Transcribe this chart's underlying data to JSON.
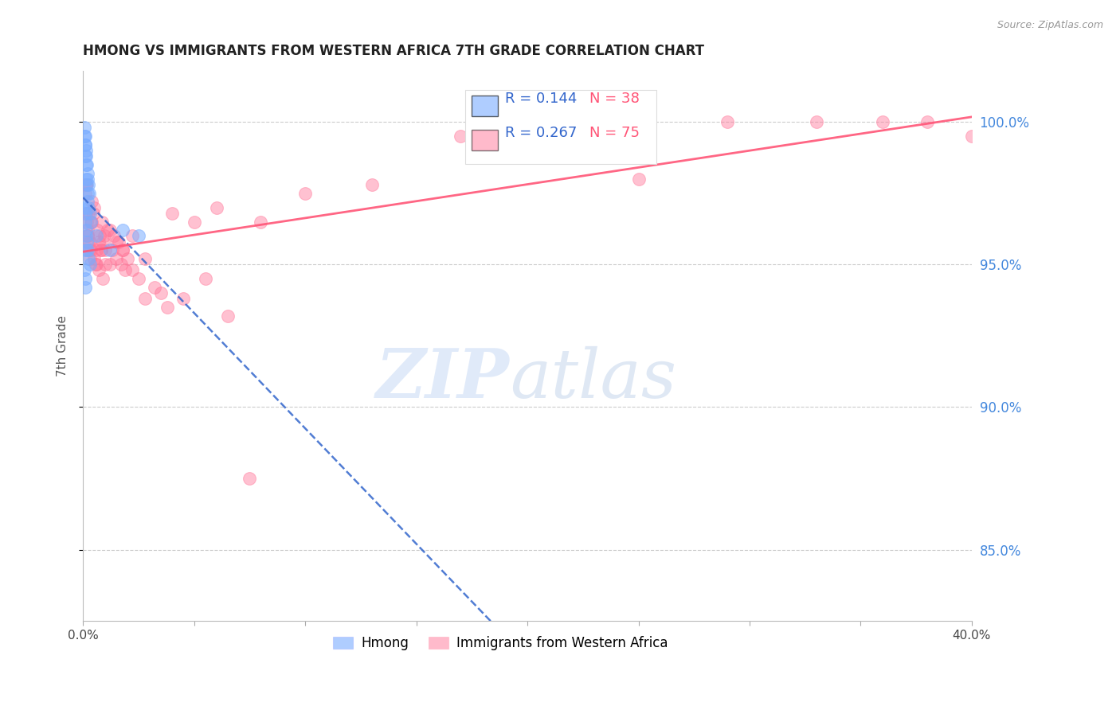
{
  "title": "HMONG VS IMMIGRANTS FROM WESTERN AFRICA 7TH GRADE CORRELATION CHART",
  "source": "Source: ZipAtlas.com",
  "ylabel": "7th Grade",
  "xlim": [
    0.0,
    40.0
  ],
  "ylim": [
    82.5,
    101.8
  ],
  "xtick_values": [
    0.0,
    5.0,
    10.0,
    15.0,
    20.0,
    25.0,
    30.0,
    35.0,
    40.0
  ],
  "xtick_labels": [
    "0.0%",
    "",
    "",
    "",
    "",
    "",
    "",
    "",
    "40.0%"
  ],
  "ytick_values": [
    85.0,
    90.0,
    95.0,
    100.0
  ],
  "ytick_labels": [
    "85.0%",
    "90.0%",
    "95.0%",
    "100.0%"
  ],
  "hmong_R": 0.144,
  "hmong_N": 38,
  "waf_R": 0.267,
  "waf_N": 75,
  "hmong_color": "#7aadff",
  "waf_color": "#ff7799",
  "hmong_line_color": "#3366cc",
  "waf_line_color": "#ff5577",
  "hmong_x": [
    0.05,
    0.08,
    0.1,
    0.12,
    0.15,
    0.18,
    0.2,
    0.22,
    0.25,
    0.28,
    0.05,
    0.08,
    0.1,
    0.12,
    0.15,
    0.18,
    0.2,
    0.22,
    0.25,
    0.3,
    0.05,
    0.08,
    0.1,
    0.12,
    0.15,
    0.18,
    0.2,
    0.25,
    0.3,
    0.35,
    0.05,
    0.08,
    0.1,
    0.15,
    0.6,
    1.2,
    1.8,
    2.5
  ],
  "hmong_y": [
    99.8,
    99.5,
    99.2,
    99.0,
    98.8,
    98.5,
    98.2,
    98.0,
    97.8,
    97.5,
    99.5,
    99.2,
    98.8,
    98.5,
    98.0,
    97.8,
    97.5,
    97.2,
    97.0,
    96.8,
    97.0,
    96.8,
    96.5,
    96.2,
    96.0,
    95.8,
    95.5,
    95.2,
    95.0,
    96.5,
    94.8,
    94.5,
    94.2,
    95.5,
    96.0,
    95.5,
    96.2,
    96.0
  ],
  "waf_x": [
    0.08,
    0.12,
    0.15,
    0.18,
    0.2,
    0.22,
    0.25,
    0.28,
    0.3,
    0.35,
    0.4,
    0.45,
    0.5,
    0.55,
    0.6,
    0.65,
    0.7,
    0.75,
    0.8,
    0.85,
    0.9,
    0.95,
    1.0,
    1.1,
    1.2,
    1.3,
    1.4,
    1.5,
    1.6,
    1.7,
    1.8,
    1.9,
    2.0,
    2.2,
    2.5,
    2.8,
    3.2,
    3.8,
    4.5,
    5.5,
    6.5,
    7.5,
    0.1,
    0.2,
    0.3,
    0.4,
    0.5,
    0.6,
    0.7,
    0.8,
    0.9,
    1.0,
    1.2,
    1.5,
    1.8,
    2.2,
    2.8,
    3.5,
    0.15,
    0.25,
    0.35,
    4.0,
    5.0,
    6.0,
    8.0,
    10.0,
    13.0,
    17.0,
    20.0,
    25.0,
    29.0,
    33.0,
    36.0,
    38.0,
    40.0
  ],
  "waf_y": [
    97.5,
    96.8,
    97.8,
    96.5,
    96.2,
    96.0,
    95.8,
    95.5,
    95.2,
    96.5,
    97.2,
    96.8,
    97.0,
    95.0,
    95.5,
    96.2,
    95.8,
    96.0,
    95.5,
    96.5,
    95.8,
    96.0,
    95.5,
    96.2,
    95.0,
    95.5,
    96.0,
    95.2,
    95.8,
    95.0,
    95.5,
    94.8,
    95.2,
    96.0,
    94.5,
    93.8,
    94.2,
    93.5,
    93.8,
    94.5,
    93.2,
    87.5,
    95.5,
    96.0,
    95.8,
    96.5,
    95.2,
    95.0,
    94.8,
    95.5,
    94.5,
    95.0,
    96.2,
    95.8,
    95.5,
    94.8,
    95.2,
    94.0,
    97.8,
    96.8,
    95.5,
    96.8,
    96.5,
    97.0,
    96.5,
    97.5,
    97.8,
    99.5,
    99.8,
    98.0,
    100.0,
    100.0,
    100.0,
    100.0,
    99.5
  ],
  "watermark_zip": "ZIP",
  "watermark_atlas": "atlas",
  "background_color": "#ffffff",
  "grid_color": "#cccccc",
  "title_color": "#222222",
  "axis_label_color": "#555555",
  "right_axis_color": "#4488dd",
  "source_color": "#999999"
}
